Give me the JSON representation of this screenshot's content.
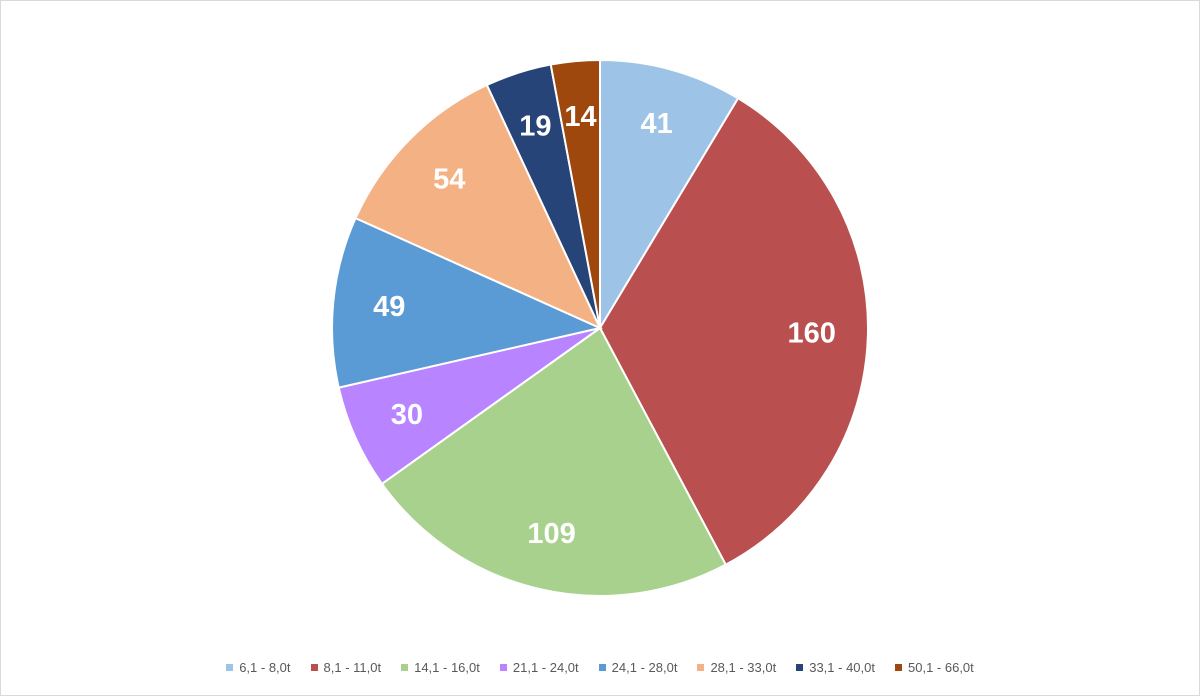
{
  "chart_data": {
    "type": "pie",
    "title": "",
    "categories": [
      "6,1 - 8,0t",
      "8,1 - 11,0t",
      "14,1 - 16,0t",
      "21,1 - 24,0t",
      "24,1 - 28,0t",
      "28,1 - 33,0t",
      "33,1 - 40,0t",
      "50,1 - 66,0t"
    ],
    "values": [
      41,
      160,
      109,
      30,
      49,
      54,
      19,
      14
    ],
    "labels": [
      "41",
      "160",
      "109",
      "30",
      "49",
      "54",
      "19",
      "14"
    ],
    "colors": [
      "#9dc3e6",
      "#b94f4f",
      "#a9d18e",
      "#b884ff",
      "#5b9bd5",
      "#f4b183",
      "#264478",
      "#9e480e"
    ],
    "legend_position": "bottom",
    "start_angle": "12 o'clock",
    "direction": "clockwise"
  }
}
